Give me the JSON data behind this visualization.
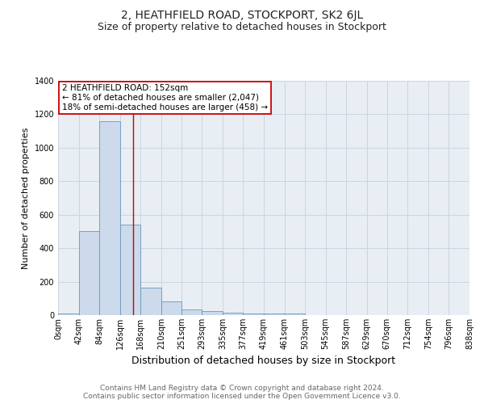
{
  "title": "2, HEATHFIELD ROAD, STOCKPORT, SK2 6JL",
  "subtitle": "Size of property relative to detached houses in Stockport",
  "xlabel": "Distribution of detached houses by size in Stockport",
  "ylabel": "Number of detached properties",
  "footer_line1": "Contains HM Land Registry data © Crown copyright and database right 2024.",
  "footer_line2": "Contains public sector information licensed under the Open Government Licence v3.0.",
  "bin_edges": [
    0,
    42,
    84,
    126,
    168,
    210,
    251,
    293,
    335,
    377,
    419,
    461,
    503,
    545,
    587,
    629,
    670,
    712,
    754,
    796,
    838
  ],
  "bin_labels": [
    "0sqm",
    "42sqm",
    "84sqm",
    "126sqm",
    "168sqm",
    "210sqm",
    "251sqm",
    "293sqm",
    "335sqm",
    "377sqm",
    "419sqm",
    "461sqm",
    "503sqm",
    "545sqm",
    "587sqm",
    "629sqm",
    "670sqm",
    "712sqm",
    "754sqm",
    "796sqm",
    "838sqm"
  ],
  "bar_heights": [
    10,
    500,
    1160,
    540,
    165,
    80,
    35,
    25,
    15,
    10,
    10,
    10,
    0,
    0,
    0,
    0,
    0,
    0,
    0,
    0
  ],
  "bar_color": "#ccdaeb",
  "bar_edgecolor": "#6699bb",
  "property_size": 152,
  "vline_color": "#cc0000",
  "annotation_text": "2 HEATHFIELD ROAD: 152sqm\n← 81% of detached houses are smaller (2,047)\n18% of semi-detached houses are larger (458) →",
  "annotation_box_facecolor": "#ffffff",
  "annotation_box_edgecolor": "#cc0000",
  "ylim": [
    0,
    1400
  ],
  "yticks": [
    0,
    200,
    400,
    600,
    800,
    1000,
    1200,
    1400
  ],
  "grid_color": "#ccd5df",
  "bg_color": "#e8eef4",
  "title_fontsize": 10,
  "subtitle_fontsize": 9,
  "xlabel_fontsize": 9,
  "ylabel_fontsize": 8,
  "tick_fontsize": 7,
  "annotation_fontsize": 7.5,
  "footer_fontsize": 6.5,
  "title_color": "#222222",
  "footer_color": "#666666"
}
